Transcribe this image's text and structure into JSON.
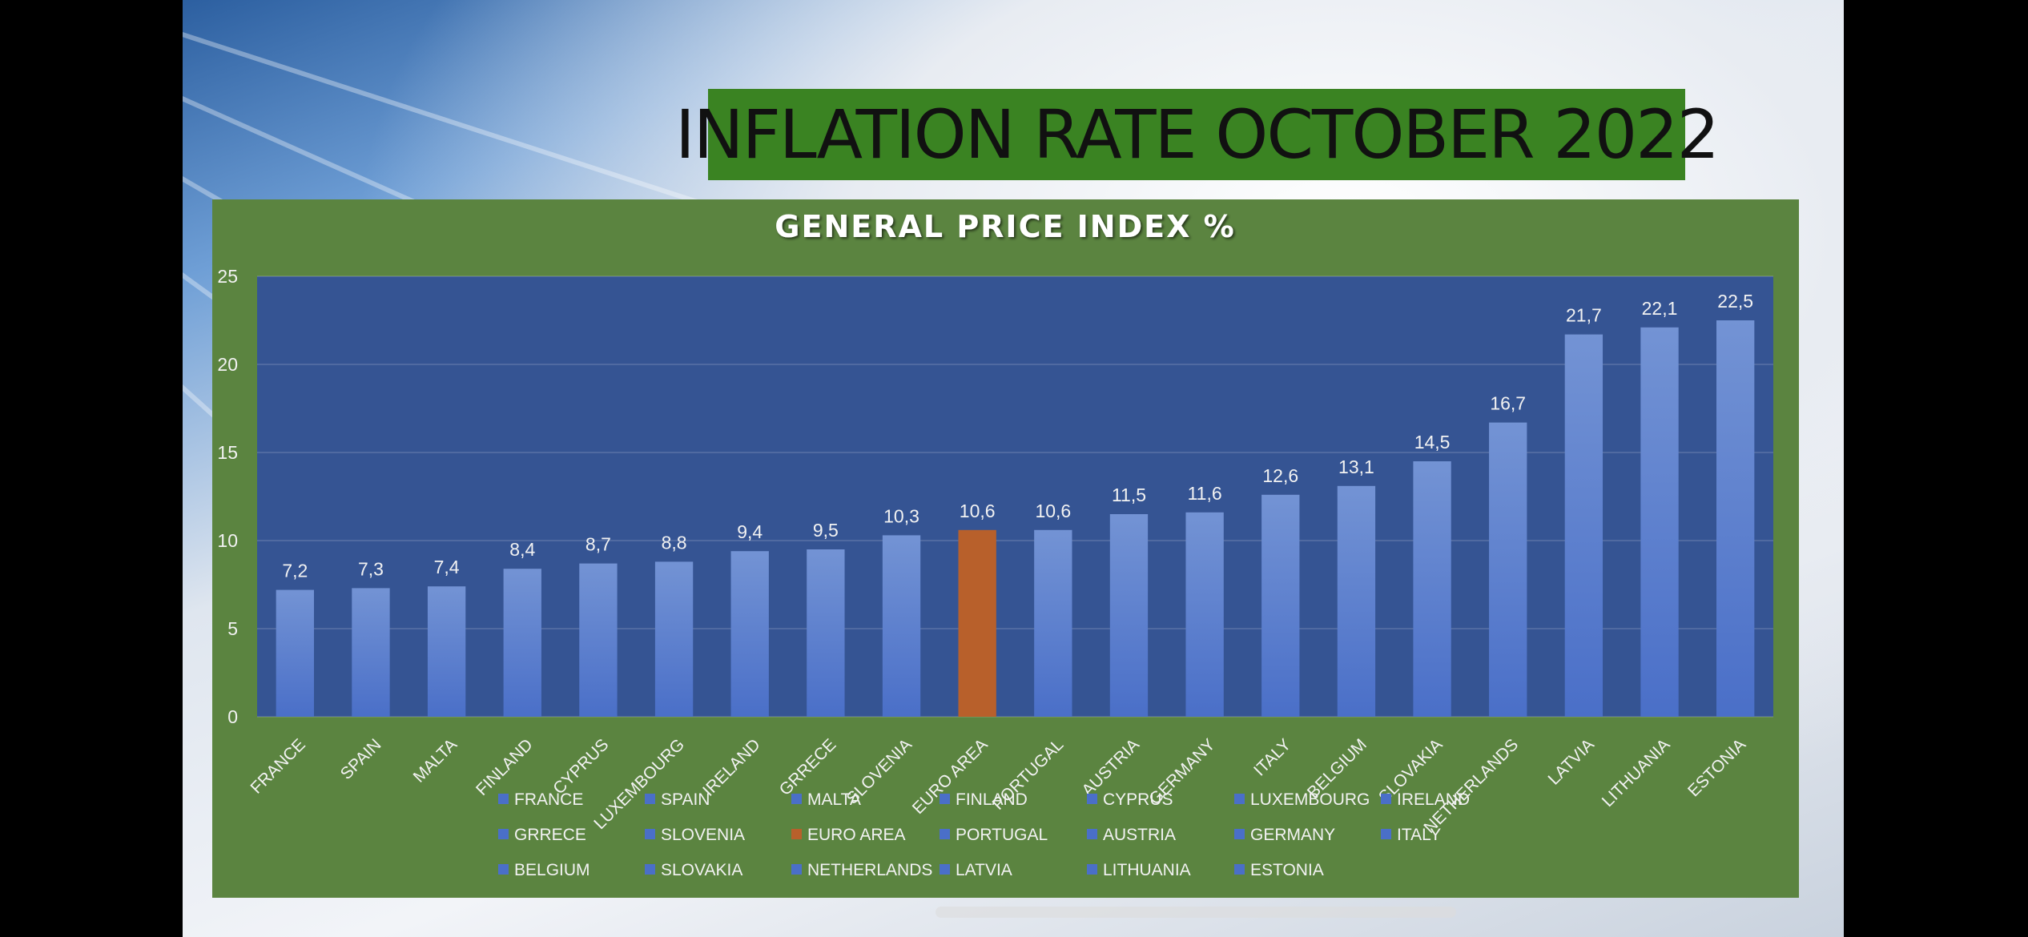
{
  "slide": {
    "title": "INFLATION RATE OCTOBER 2022"
  },
  "colors": {
    "title_bg": "#3a8322",
    "panel_bg": "#5b8440",
    "plot_bg": "#355493",
    "bar_top": "#7393d4",
    "bar_bottom": "#4a6fc8",
    "highlight": "#b8602b",
    "text": "#f2f2f2"
  },
  "chart_data": {
    "type": "bar",
    "title": "GENERAL PRICE INDEX %",
    "xlabel": "",
    "ylabel": "",
    "ylim": [
      0,
      25
    ],
    "yticks": [
      0,
      5,
      10,
      15,
      20,
      25
    ],
    "grid": true,
    "legend_position": "bottom",
    "categories": [
      "FRANCE",
      "SPAIN",
      "MALTA",
      "FINLAND",
      "CYPRUS",
      "LUXEMBOURG",
      "IRELAND",
      "GRRECE",
      "SLOVENIA",
      "EURO AREA",
      "PORTUGAL",
      "AUSTRIA",
      "GERMANY",
      "ITALY",
      "BELGIUM",
      "SLOVAKIA",
      "NETHERLANDS",
      "LATVIA",
      "LITHUANIA",
      "ESTONIA"
    ],
    "values": [
      7.2,
      7.3,
      7.4,
      8.4,
      8.7,
      8.8,
      9.4,
      9.5,
      10.3,
      10.6,
      10.6,
      11.5,
      11.6,
      12.6,
      13.1,
      14.5,
      16.7,
      21.7,
      22.1,
      22.5
    ],
    "value_labels": [
      "7,2",
      "7,3",
      "7,4",
      "8,4",
      "8,7",
      "8,8",
      "9,4",
      "9,5",
      "10,3",
      "10,6",
      "10,6",
      "11,5",
      "11,6",
      "12,6",
      "13,1",
      "14,5",
      "16,7",
      "21,7",
      "22,1",
      "22,5"
    ],
    "highlight_category": "EURO AREA"
  }
}
